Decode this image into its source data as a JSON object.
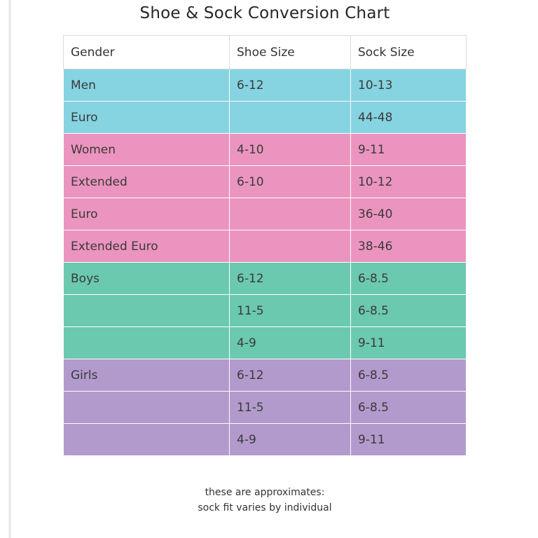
{
  "title": "Shoe & Sock Conversion Chart",
  "colors": {
    "men": "#86d3e1",
    "women": "#eb94bf",
    "boys": "#6bc9af",
    "girls": "#b39acc"
  },
  "table": {
    "headers": [
      "Gender",
      "Shoe Size",
      "Sock Size"
    ],
    "rows": [
      {
        "group": "men",
        "cells": [
          "Men",
          "6-12",
          "10-13"
        ]
      },
      {
        "group": "men",
        "cells": [
          "Euro",
          "",
          "44-48"
        ]
      },
      {
        "group": "women",
        "cells": [
          "Women",
          "4-10",
          "9-11"
        ]
      },
      {
        "group": "women",
        "cells": [
          "Extended",
          "6-10",
          "10-12"
        ]
      },
      {
        "group": "women",
        "cells": [
          "Euro",
          "",
          "36-40"
        ]
      },
      {
        "group": "women",
        "cells": [
          "Extended Euro",
          "",
          "38-46"
        ]
      },
      {
        "group": "boys",
        "cells": [
          "Boys",
          "6-12",
          "6-8.5"
        ]
      },
      {
        "group": "boys",
        "cells": [
          "",
          "11-5",
          "6-8.5"
        ]
      },
      {
        "group": "boys",
        "cells": [
          "",
          "4-9",
          "9-11"
        ]
      },
      {
        "group": "girls",
        "cells": [
          "Girls",
          "6-12",
          "6-8.5"
        ]
      },
      {
        "group": "girls",
        "cells": [
          "",
          "11-5",
          "6-8.5"
        ]
      },
      {
        "group": "girls",
        "cells": [
          "",
          "4-9",
          "9-11"
        ]
      }
    ]
  },
  "footnote": {
    "line1": "these are approximates:",
    "line2": "sock fit varies by individual"
  }
}
